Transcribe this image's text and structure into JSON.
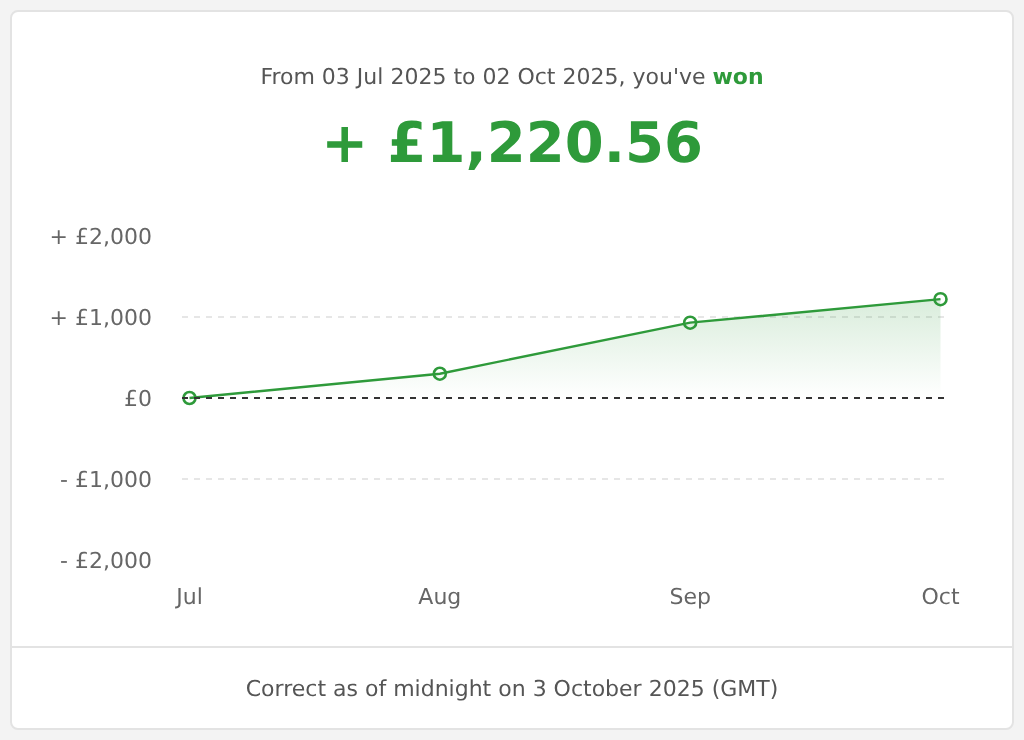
{
  "chart_data": {
    "type": "area",
    "title": "From 03 Jul 2025 to 02 Oct 2025, you've won",
    "subtitle": "+ £1,220.56",
    "categories": [
      "Jul",
      "Aug",
      "Sep",
      "Oct"
    ],
    "series": [
      {
        "color": "#2e9a3a",
        "values": [
          0,
          300,
          930,
          1220
        ]
      }
    ],
    "ylim": [
      -2000,
      2000
    ],
    "yticks": [
      {
        "value": -2000,
        "label": "- £2,000"
      },
      {
        "value": -1000,
        "label": "- £1,000"
      },
      {
        "value": 0,
        "label": "£0"
      },
      {
        "value": 1000,
        "label": "+ £1,000"
      },
      {
        "value": 2000,
        "label": "+ £2,000"
      }
    ],
    "ref_lines": [
      {
        "axis": "y",
        "value": 0,
        "color": "#333333",
        "line_style": "dotted"
      }
    ],
    "grid": "y",
    "marker": "circle",
    "line_style": "solid",
    "annotations": [
      "Correct as of midnight on 3 October 2025 (GMT)"
    ]
  }
}
